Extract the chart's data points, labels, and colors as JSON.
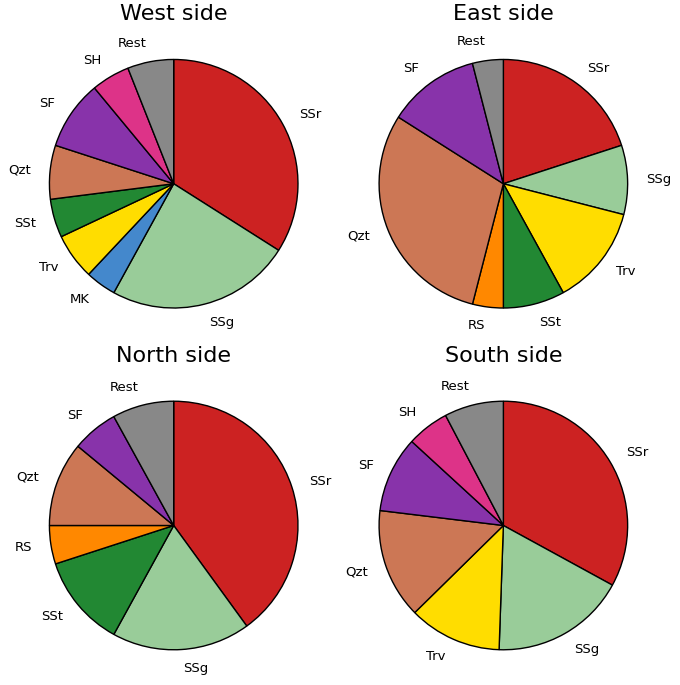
{
  "charts": [
    {
      "title": "West side",
      "labels": [
        "SSr",
        "SSg",
        "MK",
        "Trv",
        "SSt",
        "Qzt",
        "SF",
        "SH",
        "Rest"
      ],
      "values": [
        34,
        24,
        4,
        6,
        5,
        7,
        9,
        5,
        6
      ],
      "colors": [
        "#cc2222",
        "#99cc99",
        "#4488cc",
        "#ffdd00",
        "#228833",
        "#cc7755",
        "#8833aa",
        "#dd3388",
        "#888888"
      ],
      "startangle": 90
    },
    {
      "title": "East side",
      "labels": [
        "SSr",
        "SSg",
        "Trv",
        "SSt",
        "RS",
        "Qzt",
        "SF",
        "Rest"
      ],
      "values": [
        20,
        9,
        13,
        8,
        4,
        30,
        12,
        4
      ],
      "colors": [
        "#cc2222",
        "#99cc99",
        "#ffdd00",
        "#228833",
        "#ff8800",
        "#cc7755",
        "#8833aa",
        "#888888"
      ],
      "startangle": 90
    },
    {
      "title": "North side",
      "labels": [
        "SSr",
        "SSg",
        "SSt",
        "RS",
        "Qzt",
        "SF",
        "Rest"
      ],
      "values": [
        40,
        18,
        12,
        5,
        11,
        6,
        8
      ],
      "colors": [
        "#cc2222",
        "#99cc99",
        "#228833",
        "#ff8800",
        "#cc7755",
        "#8833aa",
        "#888888"
      ],
      "startangle": 90
    },
    {
      "title": "South side",
      "labels": [
        "SSr",
        "SSg",
        "Trv",
        "Qzt",
        "SF",
        "SH",
        "Rest"
      ],
      "values": [
        30,
        16,
        11,
        13,
        9,
        5,
        7
      ],
      "colors": [
        "#cc2222",
        "#99cc99",
        "#ffdd00",
        "#cc7755",
        "#8833aa",
        "#dd3388",
        "#888888"
      ],
      "startangle": 90
    }
  ],
  "figure_bg": "#ffffff",
  "title_fontsize": 16,
  "label_fontsize": 9.5
}
